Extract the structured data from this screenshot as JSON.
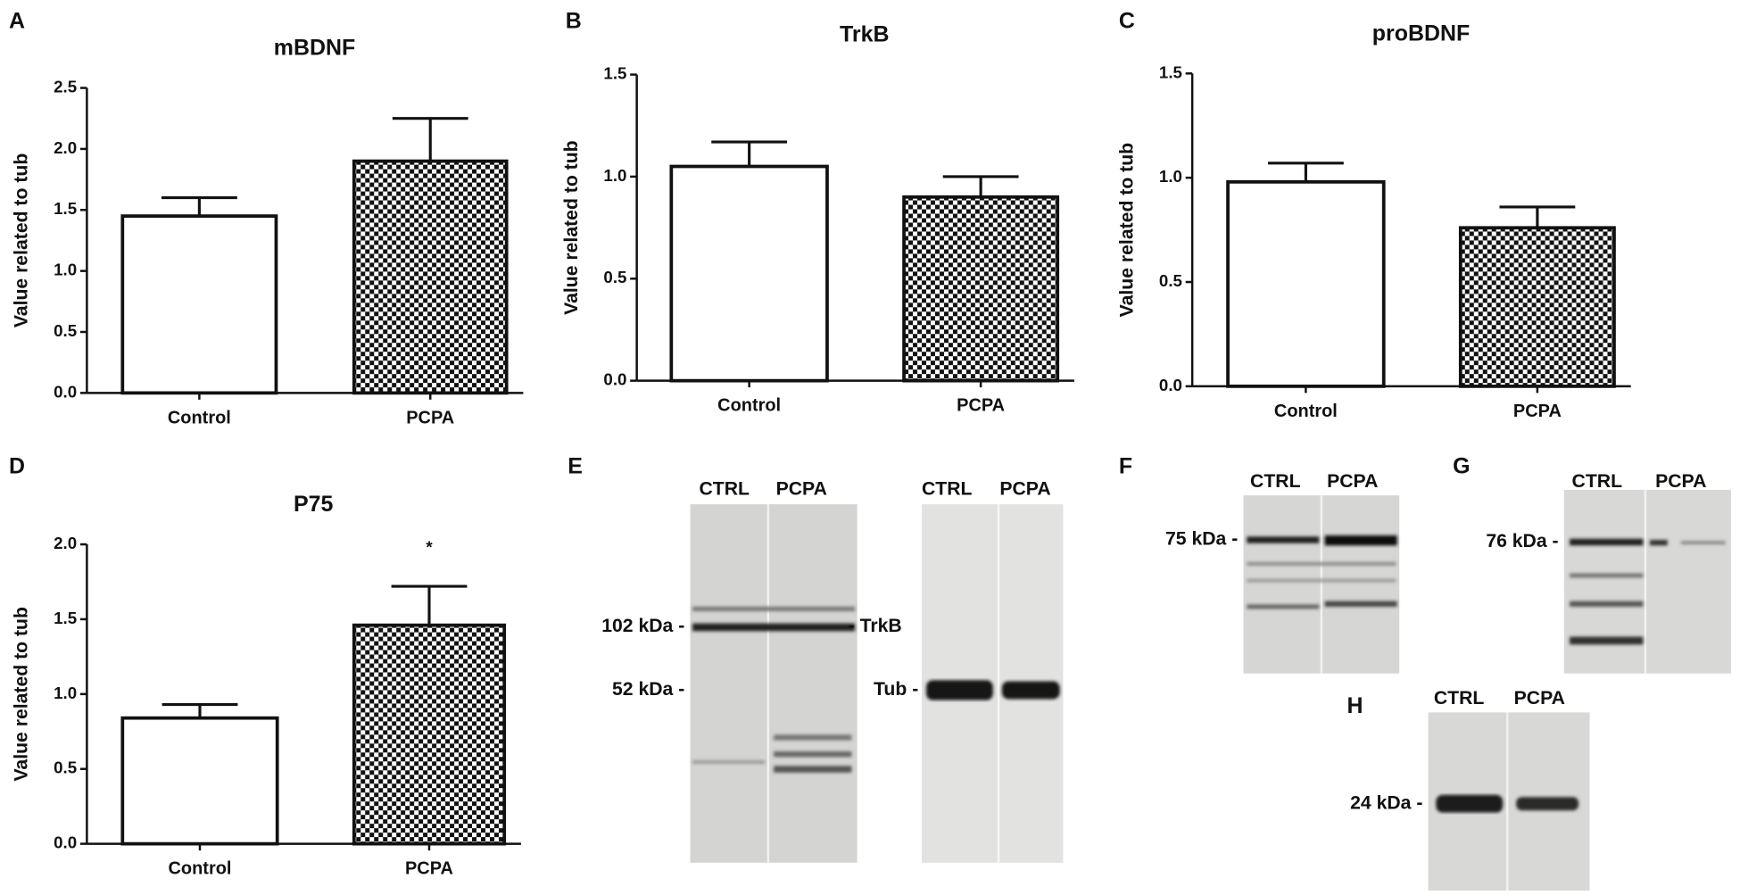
{
  "chart_data": [
    {
      "type": "bar",
      "panel": "A",
      "title": "mBDNF",
      "y_label": "Value related to tub",
      "categories": [
        "Control",
        "PCPA"
      ],
      "values": [
        1.45,
        1.9
      ],
      "errors": [
        0.15,
        0.35
      ],
      "fills": [
        "white",
        "checkerboard"
      ],
      "ylim": [
        0,
        2.5
      ],
      "yticks": [
        {
          "value": 0,
          "label": "0.0"
        },
        0.5,
        {
          "value": 1,
          "label": "1.0"
        },
        1.5,
        {
          "value": 2,
          "label": "2.0"
        },
        2.5
      ]
    },
    {
      "type": "bar",
      "panel": "B",
      "title": "TrkB",
      "y_label": "Value related to tub",
      "categories": [
        "Control",
        "PCPA"
      ],
      "values": [
        1.05,
        0.9
      ],
      "errors": [
        0.12,
        0.1
      ],
      "fills": [
        "white",
        "checkerboard"
      ],
      "ylim": [
        0,
        1.5
      ],
      "yticks": [
        {
          "value": 0,
          "label": "0.0"
        },
        0.5,
        {
          "value": 1,
          "label": "1.0"
        },
        1.5
      ]
    },
    {
      "type": "bar",
      "panel": "C",
      "title": "proBDNF",
      "y_label": "Value related to tub",
      "categories": [
        "Control",
        "PCPA"
      ],
      "values": [
        0.98,
        0.76
      ],
      "errors": [
        0.09,
        0.1
      ],
      "fills": [
        "white",
        "checkerboard"
      ],
      "ylim": [
        0,
        1.5
      ],
      "yticks": [
        {
          "value": 0,
          "label": "0.0"
        },
        0.5,
        {
          "value": 1,
          "label": "1.0"
        },
        1.5
      ]
    },
    {
      "type": "bar",
      "panel": "D",
      "title": "P75",
      "y_label": "Value related to tub",
      "categories": [
        "Control",
        "PCPA"
      ],
      "values": [
        0.84,
        1.46
      ],
      "errors": [
        0.09,
        0.26
      ],
      "fills": [
        "white",
        "checkerboard"
      ],
      "annotation": "*",
      "ylim": [
        0,
        2
      ],
      "yticks": [
        {
          "value": 0,
          "label": "0.0"
        },
        0.5,
        {
          "value": 1,
          "label": "1.0"
        },
        1.5,
        {
          "value": 2,
          "label": "2.0"
        }
      ]
    }
  ],
  "blots": [
    {
      "panel": "E",
      "lanes": [
        "CTRL",
        "PCPA",
        "CTRL",
        "PCPA"
      ],
      "markers": [
        "102 kDa -",
        "52 kDa -",
        "- TrkB",
        "Tub -"
      ]
    },
    {
      "panel": "F",
      "lanes": [
        "CTRL",
        "PCPA"
      ],
      "markers": [
        "75 kDa -"
      ]
    },
    {
      "panel": "G",
      "lanes": [
        "CTRL",
        "PCPA"
      ],
      "markers": [
        "76 kDa -"
      ]
    },
    {
      "panel": "H",
      "lanes": [
        "CTRL",
        "PCPA"
      ],
      "markers": [
        "24 kDa -"
      ]
    }
  ]
}
